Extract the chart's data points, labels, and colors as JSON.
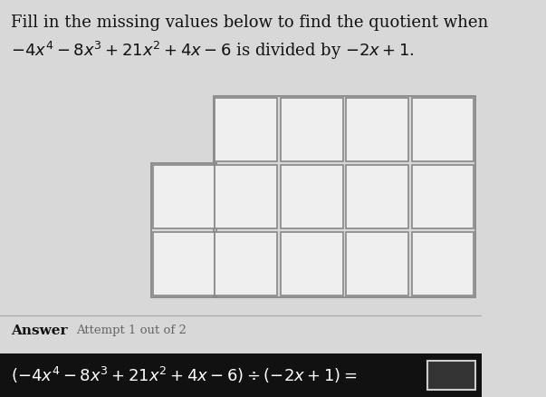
{
  "title_line1": "Fill in the missing values below to find the quotient when",
  "title_line2": "$-4x^4 - 8x^3 + 21x^2 + 4x - 6$ is divided by $-2x + 1$.",
  "answer_label": "Answer",
  "attempt_label": "Attempt 1 out of 2",
  "bottom_equation": "$(-4x^4 - 8x^3 + 21x^2 + 4x - 6) \\div (-2x + 1) =$",
  "background_color": "#d8d8d8",
  "box_fill": "#efefef",
  "box_edge_color": "#888888",
  "outer_edge_color": "#888888",
  "bottom_bar_color": "#111111",
  "bottom_text_color": "#ffffff",
  "title_color": "#111111",
  "answer_color": "#111111",
  "attempt_color": "#666666",
  "divider_color": "#aaaaaa"
}
